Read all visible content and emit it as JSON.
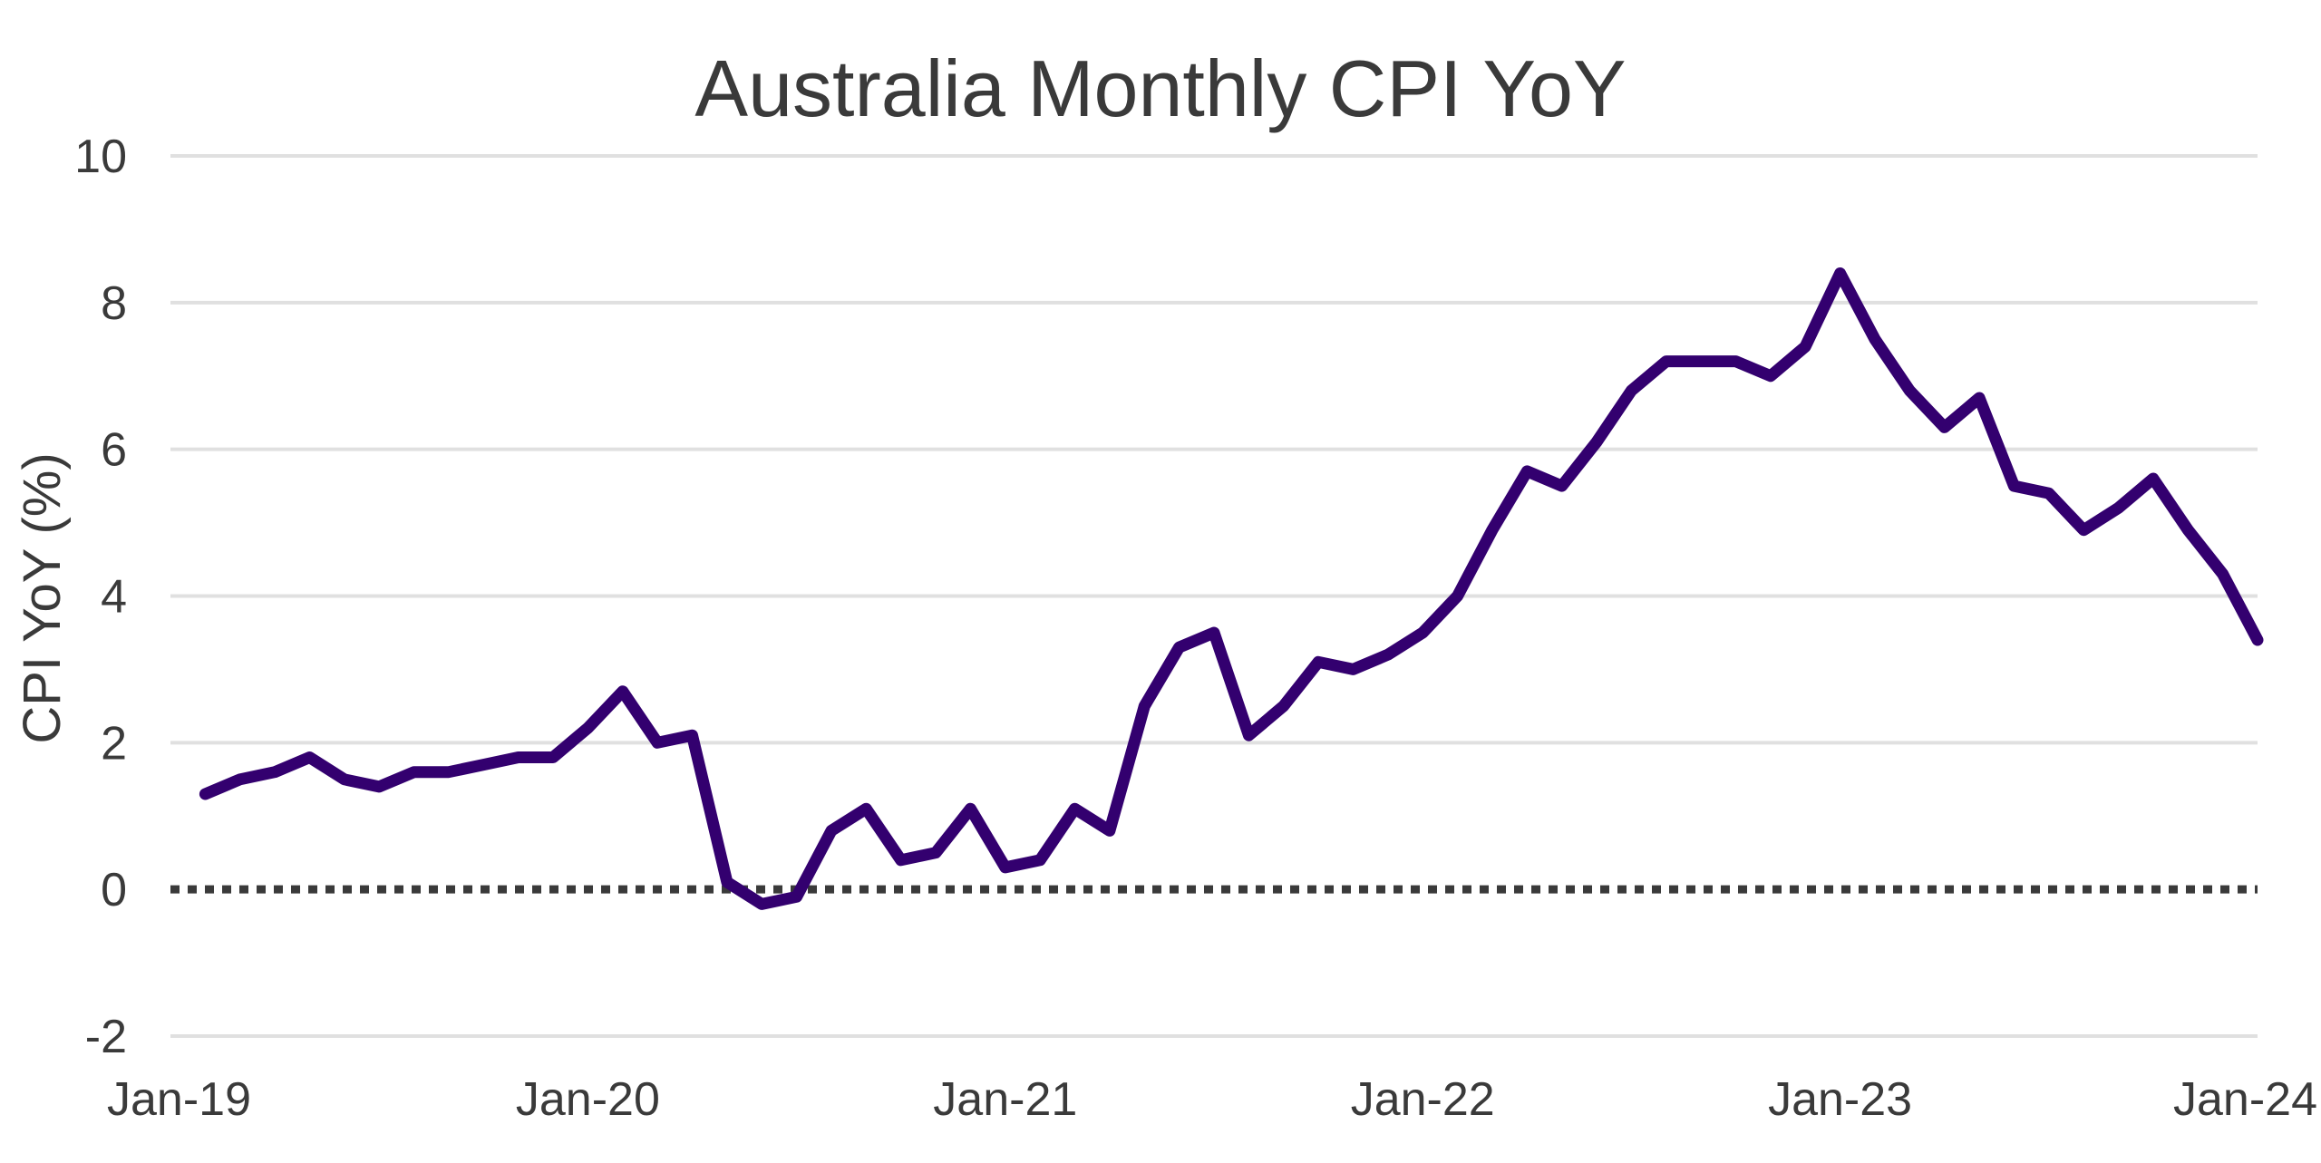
{
  "chart_data": {
    "type": "line",
    "title": "Australia Monthly CPI YoY",
    "xlabel": "",
    "ylabel": "CPI YoY (%)",
    "ylim": [
      -2,
      10
    ],
    "yticks": [
      "10",
      "8",
      "6",
      "4",
      "2",
      "0",
      "-2"
    ],
    "ytick_values": [
      10,
      8,
      6,
      4,
      2,
      0,
      -2
    ],
    "xticks": [
      "Jan-19",
      "Jan-20",
      "Jan-21",
      "Jan-22",
      "Jan-23",
      "Jan-24"
    ],
    "xtick_months": [
      0,
      12,
      24,
      36,
      48,
      60
    ],
    "grid": true,
    "zero_line": "dotted",
    "series_color": "#33006f",
    "x": [
      "Jan-19",
      "Feb-19",
      "Mar-19",
      "Apr-19",
      "May-19",
      "Jun-19",
      "Jul-19",
      "Aug-19",
      "Sep-19",
      "Oct-19",
      "Nov-19",
      "Dec-19",
      "Jan-20",
      "Feb-20",
      "Mar-20",
      "Apr-20",
      "May-20",
      "Jun-20",
      "Jul-20",
      "Aug-20",
      "Sep-20",
      "Oct-20",
      "Nov-20",
      "Dec-20",
      "Jan-21",
      "Feb-21",
      "Mar-21",
      "Apr-21",
      "May-21",
      "Jun-21",
      "Jul-21",
      "Aug-21",
      "Sep-21",
      "Oct-21",
      "Nov-21",
      "Dec-21",
      "Jan-22",
      "Feb-22",
      "Mar-22",
      "Apr-22",
      "May-22",
      "Jun-22",
      "Jul-22",
      "Aug-22",
      "Sep-22",
      "Oct-22",
      "Nov-22",
      "Dec-22",
      "Jan-23",
      "Feb-23",
      "Mar-23",
      "Apr-23",
      "May-23",
      "Jun-23",
      "Jul-23",
      "Aug-23",
      "Sep-23",
      "Oct-23",
      "Nov-23",
      "Dec-23"
    ],
    "values": [
      1.3,
      1.5,
      1.6,
      1.8,
      1.5,
      1.4,
      1.6,
      1.6,
      1.7,
      1.8,
      1.8,
      2.2,
      2.7,
      2.0,
      2.1,
      0.1,
      -0.2,
      -0.1,
      0.8,
      1.1,
      0.4,
      0.5,
      1.1,
      0.3,
      0.4,
      1.1,
      0.8,
      2.5,
      3.3,
      3.5,
      2.1,
      2.5,
      3.1,
      3.0,
      3.2,
      3.5,
      4.0,
      4.9,
      5.7,
      5.5,
      6.1,
      6.8,
      7.2,
      7.2,
      7.2,
      7.0,
      7.4,
      8.4,
      7.5,
      6.8,
      6.3,
      6.7,
      5.5,
      5.4,
      4.9,
      5.2,
      5.6,
      4.9,
      4.3,
      3.4
    ]
  }
}
